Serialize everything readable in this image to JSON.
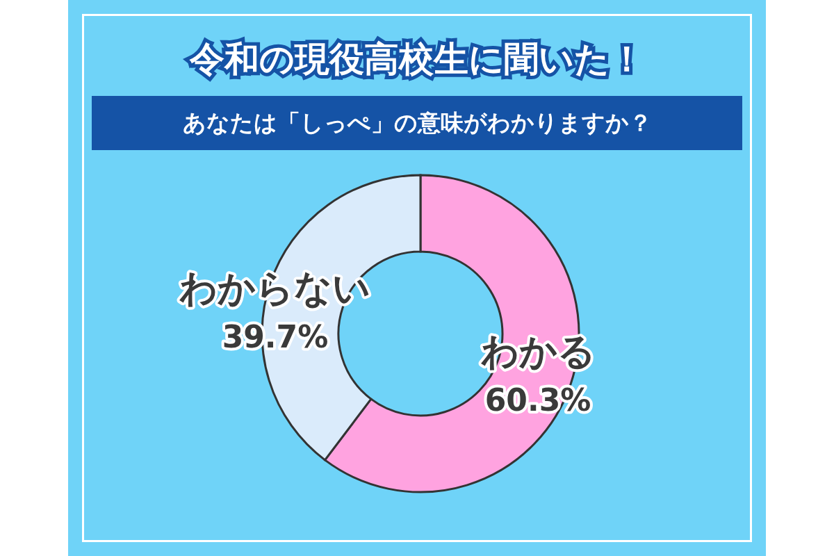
{
  "chart_data": {
    "type": "donut",
    "title": "令和の現役高校生に聞いた！",
    "subtitle": "あなたは「しっぺ」の意味がわかりますか？",
    "categories": [
      "わかる",
      "わからない"
    ],
    "values": [
      60.3,
      39.7
    ],
    "colors": [
      "#ffa3e0",
      "#daebfb"
    ],
    "value_labels": [
      "60.3%",
      "39.7%"
    ],
    "legend": false
  }
}
